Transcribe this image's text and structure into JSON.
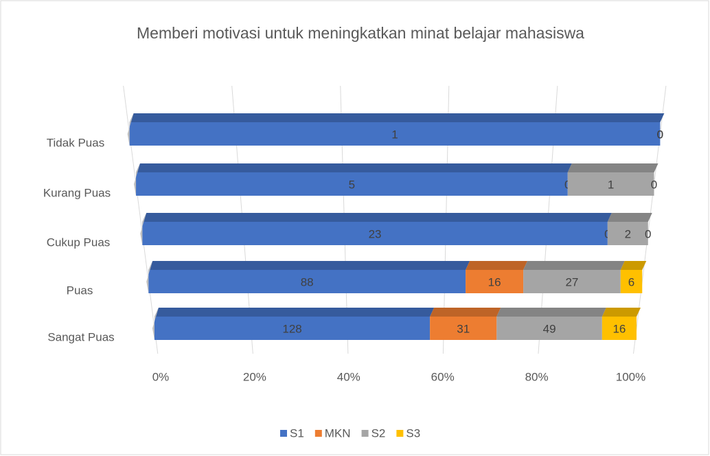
{
  "chart_data": {
    "type": "bar",
    "orientation": "horizontal",
    "stacked": "percent",
    "title": "Memberi motivasi untuk meningkatkan minat belajar mahasiswa",
    "categories": [
      "Tidak Puas",
      "Kurang Puas",
      "Cukup Puas",
      "Puas",
      "Sangat Puas"
    ],
    "series": [
      {
        "name": "S1",
        "color": "#4472c4",
        "values": [
          1,
          5,
          23,
          88,
          128
        ]
      },
      {
        "name": "MKN",
        "color": "#ed7d31",
        "values": [
          0,
          0,
          0,
          16,
          31
        ]
      },
      {
        "name": "S2",
        "color": "#a5a5a5",
        "values": [
          0,
          1,
          2,
          27,
          49
        ]
      },
      {
        "name": "S3",
        "color": "#ffc000",
        "values": [
          0,
          0,
          0,
          6,
          16
        ]
      }
    ],
    "xlim": [
      0,
      100
    ],
    "xticks": [
      {
        "value": 0,
        "label": "0%"
      },
      {
        "value": 20,
        "label": "20%"
      },
      {
        "value": 40,
        "label": "40%"
      },
      {
        "value": 60,
        "label": "60%"
      },
      {
        "value": 80,
        "label": "80%"
      },
      {
        "value": 100,
        "label": "100%"
      }
    ],
    "grid": true,
    "legend": "bottom"
  }
}
